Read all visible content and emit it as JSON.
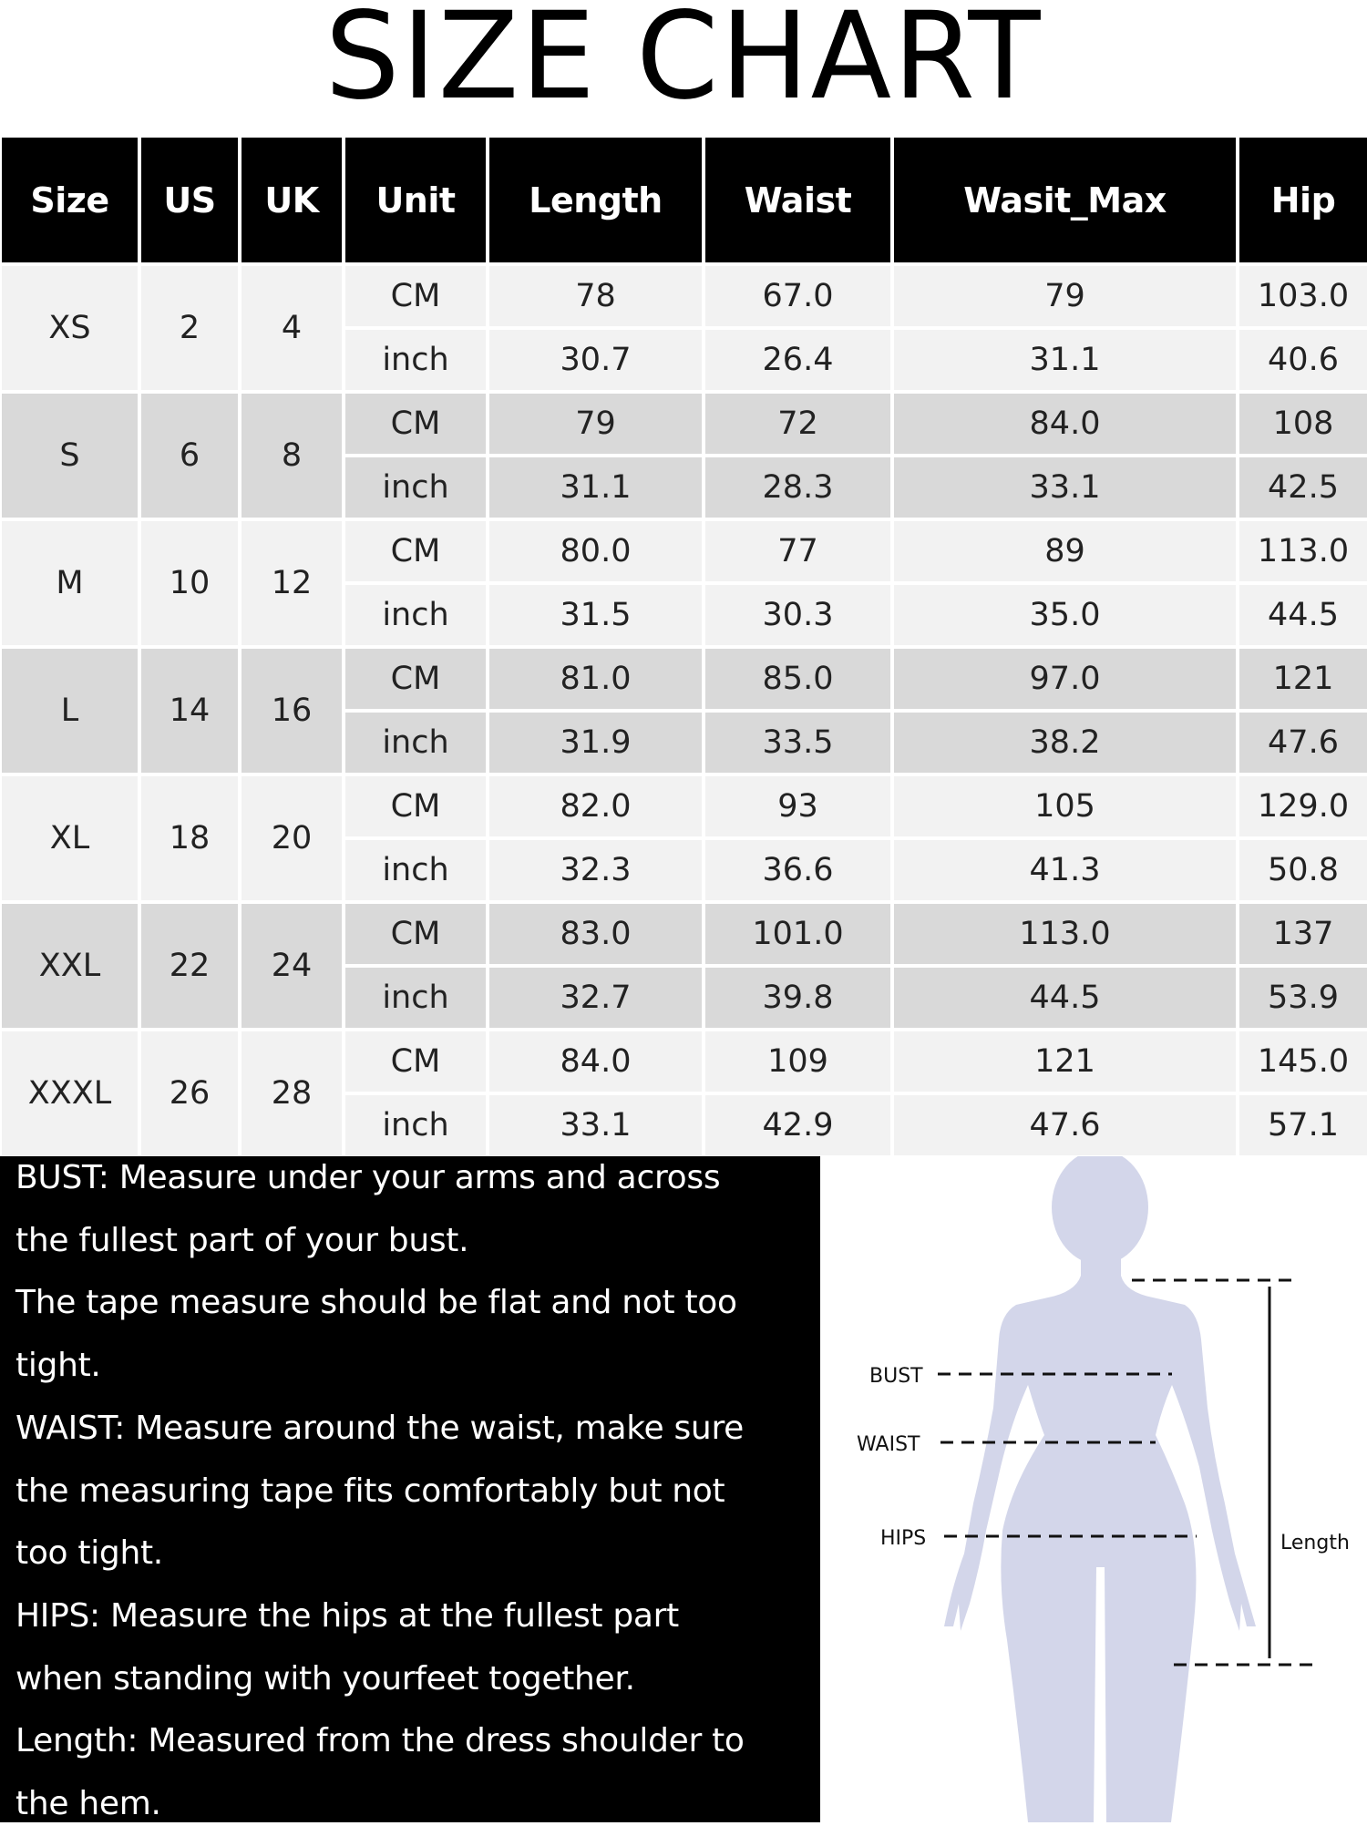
{
  "title": "SIZE CHART",
  "table": {
    "headers": [
      "Size",
      "US",
      "UK",
      "Unit",
      "Length",
      "Waist",
      "Wasit_Max",
      "Hip"
    ],
    "rows": [
      {
        "size": "XS",
        "us": "2",
        "uk": "4",
        "cm": [
          "78",
          "67.0",
          "79",
          "103.0"
        ],
        "inch": [
          "30.7",
          "26.4",
          "31.1",
          "40.6"
        ]
      },
      {
        "size": "S",
        "us": "6",
        "uk": "8",
        "cm": [
          "79",
          "72",
          "84.0",
          "108"
        ],
        "inch": [
          "31.1",
          "28.3",
          "33.1",
          "42.5"
        ]
      },
      {
        "size": "M",
        "us": "10",
        "uk": "12",
        "cm": [
          "80.0",
          "77",
          "89",
          "113.0"
        ],
        "inch": [
          "31.5",
          "30.3",
          "35.0",
          "44.5"
        ]
      },
      {
        "size": "L",
        "us": "14",
        "uk": "16",
        "cm": [
          "81.0",
          "85.0",
          "97.0",
          "121"
        ],
        "inch": [
          "31.9",
          "33.5",
          "38.2",
          "47.6"
        ]
      },
      {
        "size": "XL",
        "us": "18",
        "uk": "20",
        "cm": [
          "82.0",
          "93",
          "105",
          "129.0"
        ],
        "inch": [
          "32.3",
          "36.6",
          "41.3",
          "50.8"
        ]
      },
      {
        "size": "XXL",
        "us": "22",
        "uk": "24",
        "cm": [
          "83.0",
          "101.0",
          "113.0",
          "137"
        ],
        "inch": [
          "32.7",
          "39.8",
          "44.5",
          "53.9"
        ]
      },
      {
        "size": "XXXL",
        "us": "26",
        "uk": "28",
        "cm": [
          "84.0",
          "109",
          "121",
          "145.0"
        ],
        "inch": [
          "33.1",
          "42.9",
          "47.6",
          "57.1"
        ]
      }
    ],
    "unit_cm": "CM",
    "unit_inch": "inch"
  },
  "notes": [
    "BUST: Measure under your arms and across",
    "the fullest part of your bust.",
    "The tape measure should be flat and not too",
    "tight.",
    "WAIST: Measure around the waist, make sure",
    "the measuring tape fits comfortably but not",
    "too tight.",
    "HIPS: Measure the hips at the fullest part",
    "when standing with yourfeet together.",
    "Length: Measured from the dress shoulder to",
    "the hem."
  ],
  "figure": {
    "bust_label": "BUST",
    "waist_label": "WAIST",
    "hips_label": "HIPS",
    "length_label": "Length",
    "silhouette_color": "#d3d6ea"
  },
  "colors": {
    "header_bg": "#000000",
    "row_light": "#f2f2f2",
    "row_dark": "#d9d9d9"
  }
}
